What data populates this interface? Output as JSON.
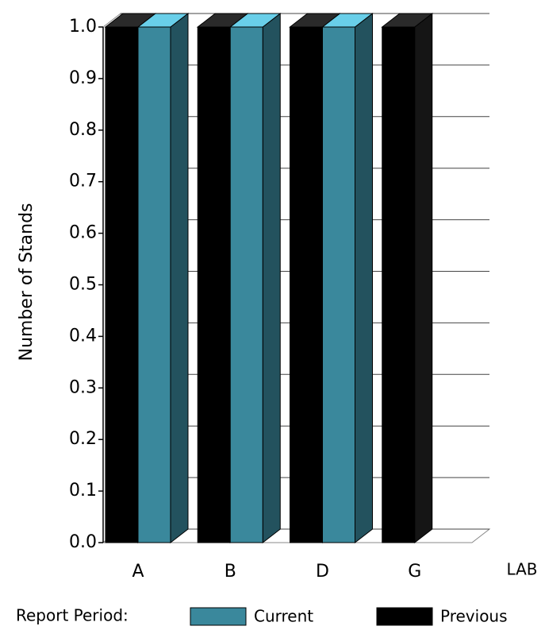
{
  "chart_data": {
    "type": "bar3d",
    "y_label": "Number of Stands",
    "x_label": "LAB",
    "legend_title": "Report Period:",
    "categories": [
      "A",
      "B",
      "D",
      "G"
    ],
    "series": [
      {
        "name": "Current",
        "color": "#3a889c",
        "values": [
          1,
          1,
          1,
          null
        ]
      },
      {
        "name": "Previous",
        "color": "#000000",
        "values": [
          1,
          1,
          1,
          1
        ]
      }
    ],
    "ylim": [
      0,
      1
    ],
    "yticks": [
      {
        "value": 0,
        "label": "0.0"
      },
      0.1,
      0.2,
      0.3,
      0.4,
      0.5,
      0.6,
      0.7,
      0.8,
      0.9,
      {
        "value": 1,
        "label": "1.0"
      }
    ],
    "grid": true
  }
}
